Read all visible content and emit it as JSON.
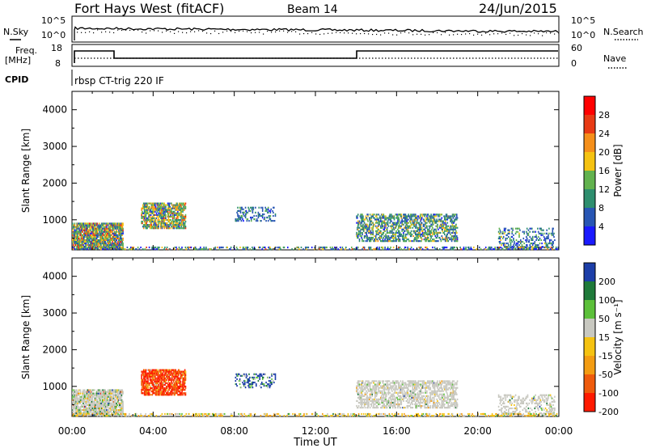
{
  "header": {
    "station": "Fort Hays West (fitACF)",
    "beam": "Beam 14",
    "date": "24/Jun/2015"
  },
  "top_panels": {
    "nsky_label": "N.Sky",
    "nsky_ticks": [
      "10^5",
      "10^0"
    ],
    "nsearch_label": "N.Search",
    "nsearch_ticks": [
      "10^5",
      "10^0"
    ],
    "freq_label_line1": "Freq.",
    "freq_label_line2": "[MHz]",
    "freq_ticks": [
      "18",
      "8"
    ],
    "nave_label": "Nave",
    "nave_ticks": [
      "60",
      "0"
    ],
    "cpid_label": "CPID",
    "cpid_text": "rbsp CT-trig 220 IF"
  },
  "chart_data": [
    {
      "type": "heatmap",
      "name": "power-panel",
      "ylabel": "Slant Range [km]",
      "y_ticks": [
        1000,
        2000,
        3000,
        4000
      ],
      "ylim": [
        180,
        4500
      ],
      "xlim": [
        0,
        24
      ],
      "colorbar_label": "Power [dB]",
      "colorbar_ticks": [
        "4",
        "8",
        "12",
        "16",
        "20",
        "24",
        "28"
      ],
      "colorbar_colors": [
        "#1a1aff",
        "#2856b4",
        "#2e8e6e",
        "#62b24e",
        "#f5c211",
        "#f58f1a",
        "#e83a14",
        "#ff0000"
      ]
    },
    {
      "type": "heatmap",
      "name": "velocity-panel",
      "ylabel": "Slant Range [km]",
      "y_ticks": [
        1000,
        2000,
        3000,
        4000
      ],
      "ylim": [
        180,
        4500
      ],
      "xlim": [
        0,
        24
      ],
      "colorbar_label": "Velocity [m s⁻¹]",
      "colorbar_ticks": [
        "200",
        "100",
        "50",
        "15",
        "-15",
        "-50",
        "-100",
        "-200"
      ],
      "colorbar_colors": [
        "#1c3ea8",
        "#1f7a3a",
        "#5cc03a",
        "#c8c8c0",
        "#f5c211",
        "#f39c12",
        "#ef5b0c",
        "#ff1a00"
      ]
    }
  ],
  "x_axis": {
    "ticks": [
      "00:00",
      "04:00",
      "08:00",
      "12:00",
      "16:00",
      "20:00",
      "00:00"
    ],
    "label": "Time UT"
  }
}
